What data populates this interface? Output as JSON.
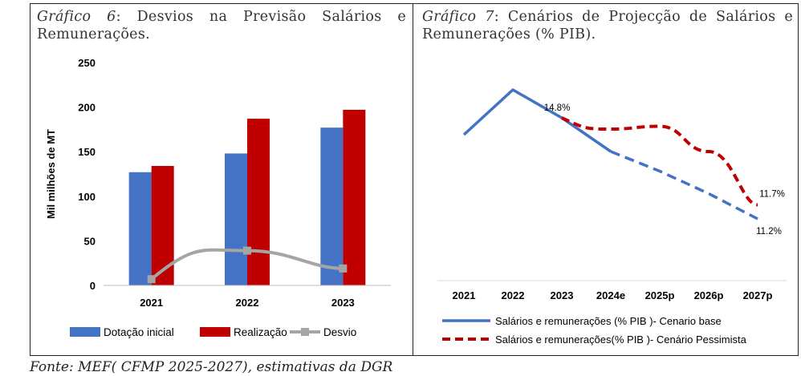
{
  "captions": {
    "left": {
      "label": "Gráfico 6",
      "title": ": Desvios na Previsão Salários e Remunerações."
    },
    "right": {
      "label": "Gráfico 7",
      "title": ": Cenários de Projecção de Salários e Remunerações (% PIB)."
    }
  },
  "source": "Fonte: MEF( CFMP 2025-2027), estimativas da DGR",
  "chart_data": [
    {
      "type": "bar",
      "title": "",
      "ylabel": "Mil milhões de MT",
      "ylim": [
        0,
        250
      ],
      "yticks": [
        0,
        50,
        100,
        150,
        200,
        250
      ],
      "categories": [
        "2021",
        "2022",
        "2023"
      ],
      "series": [
        {
          "name": "Dotação inicial",
          "type": "bar",
          "color": "#4472c4",
          "values": [
            127,
            148,
            177
          ]
        },
        {
          "name": "Realização",
          "type": "bar",
          "color": "#c00000",
          "values": [
            134,
            187,
            197
          ]
        },
        {
          "name": "Desvio",
          "type": "line",
          "color": "#a5a5a5",
          "values": [
            7,
            39,
            19
          ]
        }
      ],
      "grid": false,
      "legend": "bottom"
    },
    {
      "type": "line",
      "title": "",
      "categories": [
        "2021",
        "2022",
        "2023",
        "2024e",
        "2025p",
        "2026p",
        "2027p"
      ],
      "series": [
        {
          "name": "Salários e remunerações (% PIB )- Cenario base",
          "color": "#4472c4",
          "style": "solid-then-dashed",
          "values": [
            14.2,
            15.8,
            14.8,
            13.6,
            12.9,
            12.1,
            11.2
          ]
        },
        {
          "name": "Salários e remunerações(% PIB )- Cenário Pessimista",
          "color": "#c00000",
          "style": "dashed",
          "values": [
            null,
            null,
            14.8,
            14.4,
            14.5,
            13.6,
            11.7
          ]
        }
      ],
      "data_labels": {
        "2023": "14.8%",
        "base_2027p": "11.2%",
        "pess_2027p": "11.7%"
      },
      "yaxis_visible": false,
      "grid": false,
      "legend": "bottom"
    }
  ]
}
